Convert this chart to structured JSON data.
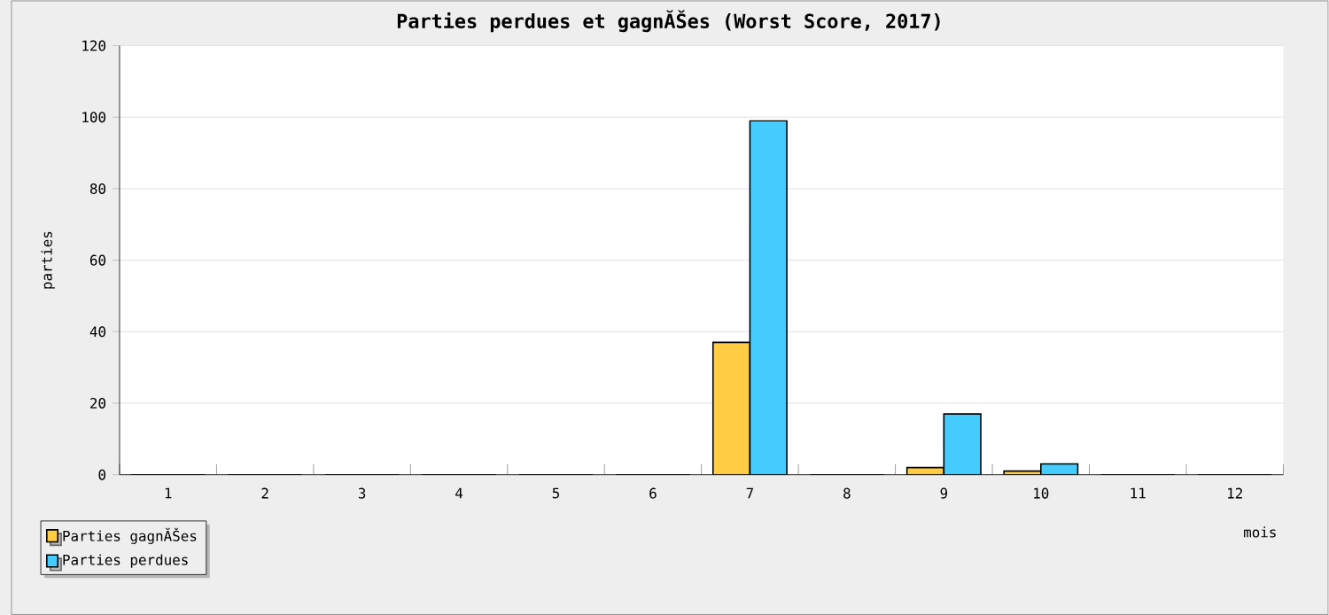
{
  "chart_data": {
    "type": "bar",
    "title": "Parties perdues et gagnĂŠes (Worst Score, 2017)",
    "xlabel": "mois",
    "ylabel": "parties",
    "categories": [
      "1",
      "2",
      "3",
      "4",
      "5",
      "6",
      "7",
      "8",
      "9",
      "10",
      "11",
      "12"
    ],
    "series": [
      {
        "name": "Parties gagnĂŠes",
        "color": "#ffcc44",
        "values": [
          0,
          0,
          0,
          0,
          0,
          0,
          37,
          0,
          2,
          1,
          0,
          0
        ]
      },
      {
        "name": "Parties perdues",
        "color": "#44ccff",
        "values": [
          0,
          0,
          0,
          0,
          0,
          0,
          99,
          0,
          17,
          3,
          0,
          0
        ]
      }
    ],
    "ylim": [
      0,
      120
    ],
    "yticks": [
      0,
      20,
      40,
      60,
      80,
      100,
      120
    ],
    "grid": "y",
    "legend": "bottom left"
  }
}
